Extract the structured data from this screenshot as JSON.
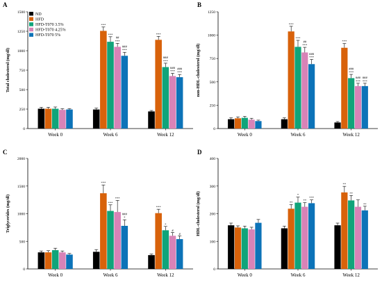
{
  "legend": [
    {
      "name": "ND",
      "color": "#000000"
    },
    {
      "name": "HFD",
      "color": "#d8620b"
    },
    {
      "name": "HFD-T070 3.5%",
      "color": "#10a47a"
    },
    {
      "name": "HFD-T070 4.25%",
      "color": "#d883b7"
    },
    {
      "name": "HFD-T070 5%",
      "color": "#0c73b8"
    }
  ],
  "chart_data": [
    {
      "panel": "A",
      "type": "bar",
      "ylabel": "Total cholesterol (mg/dl)",
      "categories": [
        "Week 0",
        "Week 6",
        "Week 12"
      ],
      "ylim": [
        0,
        1500
      ],
      "yticks": [
        0,
        250,
        500,
        750,
        1000,
        1250,
        1500
      ],
      "legend_position": "top-left",
      "series": [
        {
          "name": "ND",
          "values": [
            255,
            245,
            220
          ],
          "errors": [
            18,
            18,
            12
          ],
          "labels": [
            "",
            "",
            ""
          ]
        },
        {
          "name": "HFD",
          "values": [
            255,
            1255,
            1140
          ],
          "errors": [
            18,
            50,
            45
          ],
          "labels": [
            "",
            "***",
            "***"
          ]
        },
        {
          "name": "HFD-T070 3.5%",
          "values": [
            255,
            1115,
            790
          ],
          "errors": [
            22,
            65,
            50
          ],
          "labels": [
            "",
            "***",
            "###\n***"
          ]
        },
        {
          "name": "HFD-T070 4.25%",
          "values": [
            240,
            1050,
            675
          ],
          "errors": [
            15,
            45,
            35
          ],
          "labels": [
            "",
            "##\n***",
            "###\n***"
          ]
        },
        {
          "name": "HFD-T070 5%",
          "values": [
            245,
            935,
            660
          ],
          "errors": [
            12,
            45,
            35
          ],
          "labels": [
            "",
            "###\n***",
            "###\n***"
          ]
        }
      ]
    },
    {
      "panel": "B",
      "type": "bar",
      "ylabel": "non-HDL-cholesterol (mg/dl)",
      "categories": [
        "Week 0",
        "Week 6",
        "Week 12"
      ],
      "ylim": [
        0,
        1250
      ],
      "yticks": [
        0,
        250,
        500,
        750,
        1000,
        1250
      ],
      "series": [
        {
          "name": "ND",
          "values": [
            100,
            100,
            65
          ],
          "errors": [
            15,
            15,
            10
          ],
          "labels": [
            "",
            "",
            ""
          ]
        },
        {
          "name": "HFD",
          "values": [
            110,
            1040,
            865
          ],
          "errors": [
            15,
            55,
            45
          ],
          "labels": [
            "",
            "***",
            "***"
          ]
        },
        {
          "name": "HFD-T070 3.5%",
          "values": [
            115,
            875,
            540
          ],
          "errors": [
            15,
            70,
            40
          ],
          "labels": [
            "",
            "***",
            "###\n***"
          ]
        },
        {
          "name": "HFD-T070 4.25%",
          "values": [
            95,
            815,
            455
          ],
          "errors": [
            15,
            55,
            30
          ],
          "labels": [
            "",
            "##\n***",
            "###\n***"
          ]
        },
        {
          "name": "HFD-T070 5%",
          "values": [
            80,
            690,
            455
          ],
          "errors": [
            10,
            50,
            30
          ],
          "labels": [
            "",
            "###\n***",
            "###\n***"
          ]
        }
      ]
    },
    {
      "panel": "C",
      "type": "bar",
      "ylabel": "Triglycerides (mg/dl)",
      "categories": [
        "Week 0",
        "Week 6",
        "Week 12"
      ],
      "ylim": [
        0,
        2000
      ],
      "yticks": [
        0,
        500,
        1000,
        1500,
        2000
      ],
      "series": [
        {
          "name": "ND",
          "values": [
            300,
            310,
            250
          ],
          "errors": [
            25,
            40,
            20
          ],
          "labels": [
            "",
            "",
            ""
          ]
        },
        {
          "name": "HFD",
          "values": [
            300,
            1370,
            1010
          ],
          "errors": [
            30,
            150,
            70
          ],
          "labels": [
            "",
            "***",
            "***"
          ]
        },
        {
          "name": "HFD-T070 3.5%",
          "values": [
            340,
            1050,
            700
          ],
          "errors": [
            35,
            110,
            70
          ],
          "labels": [
            "",
            "***",
            "*"
          ]
        },
        {
          "name": "HFD-T070 4.25%",
          "values": [
            300,
            1030,
            600
          ],
          "errors": [
            25,
            210,
            60
          ],
          "labels": [
            "",
            "***",
            "#"
          ]
        },
        {
          "name": "HFD-T070 5%",
          "values": [
            260,
            780,
            540
          ],
          "errors": [
            20,
            110,
            60
          ],
          "labels": [
            "",
            "###\n*",
            "#"
          ]
        }
      ]
    },
    {
      "panel": "D",
      "type": "bar",
      "ylabel": "HDL-cholesterol (mg/dl)",
      "categories": [
        "Week 0",
        "Week 6",
        "Week 12"
      ],
      "ylim": [
        0,
        400
      ],
      "yticks": [
        0,
        100,
        200,
        300,
        400
      ],
      "series": [
        {
          "name": "ND",
          "values": [
            158,
            147,
            158
          ],
          "errors": [
            8,
            8,
            8
          ],
          "labels": [
            "",
            "",
            ""
          ]
        },
        {
          "name": "HFD",
          "values": [
            150,
            218,
            277
          ],
          "errors": [
            6,
            15,
            22
          ],
          "labels": [
            "",
            "**",
            "**"
          ]
        },
        {
          "name": "HFD-T070 3.5%",
          "values": [
            147,
            240,
            248
          ],
          "errors": [
            8,
            20,
            18
          ],
          "labels": [
            "",
            "*",
            "**"
          ]
        },
        {
          "name": "HFD-T070 4.25%",
          "values": [
            143,
            225,
            225
          ],
          "errors": [
            8,
            15,
            25
          ],
          "labels": [
            "",
            "**",
            ""
          ]
        },
        {
          "name": "HFD-T070 5%",
          "values": [
            167,
            238,
            212
          ],
          "errors": [
            12,
            12,
            15
          ],
          "labels": [
            "",
            "***",
            "**"
          ]
        }
      ]
    }
  ]
}
